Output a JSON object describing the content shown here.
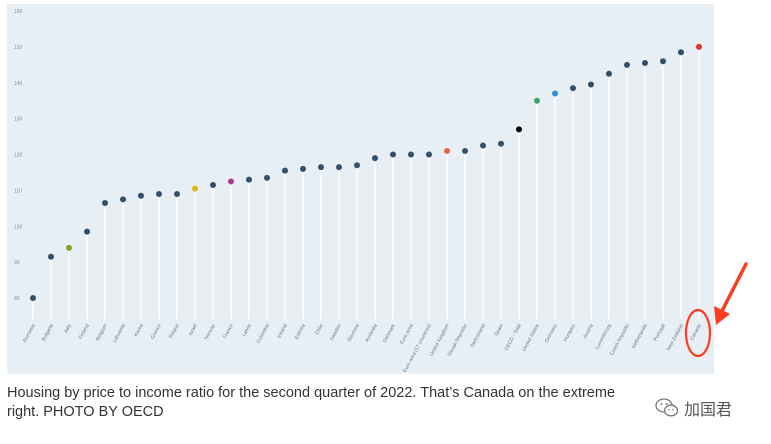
{
  "chart_data": {
    "type": "scatter",
    "title": "",
    "xlabel": "",
    "ylabel": "",
    "ylim": [
      75,
      160
    ],
    "yticks": [
      "160",
      "150",
      "140",
      "130",
      "120",
      "110",
      "100",
      "90",
      "80"
    ],
    "ytick_values": [
      160,
      150,
      140,
      130,
      120,
      110,
      100,
      90,
      80
    ],
    "categories": [
      "Romania",
      "Bulgaria",
      "Italy",
      "Finland",
      "Belgium",
      "Lithuania",
      "Korea",
      "Greece",
      "Poland",
      "Israel",
      "Norway",
      "France",
      "Latvia",
      "Colombia",
      "Ireland",
      "Estonia",
      "Chile",
      "Sweden",
      "Slovenia",
      "Australia",
      "Denmark",
      "Euro area",
      "Euro area (17 countries)",
      "United Kingdom",
      "Slovak Republic",
      "Switzerland",
      "Spain",
      "OECD - Total",
      "United States",
      "Germany",
      "Hungary",
      "Austria",
      "Luxembourg",
      "Czech Republic",
      "Netherlands",
      "Portugal",
      "New Zealand",
      "Canada"
    ],
    "values": [
      80,
      91.5,
      94,
      98.5,
      106.5,
      107.5,
      108.5,
      109,
      109,
      110.5,
      111.5,
      112.5,
      113,
      113.5,
      115.5,
      116,
      116.5,
      116.5,
      117,
      119,
      120,
      120,
      120,
      121,
      121,
      122.5,
      123,
      127,
      135,
      137,
      138.5,
      139.5,
      142.5,
      145,
      145.5,
      146,
      148.5,
      150
    ],
    "default_color": "#33506b",
    "highlight_colors": {
      "Italy": "#7fa32e",
      "Israel": "#e0b318",
      "France": "#a83b8c",
      "United Kingdom": "#e8623a",
      "OECD - Total": "#000000",
      "United States": "#3aa86a",
      "Germany": "#2b8fd6",
      "Canada": "#e2342c"
    },
    "label_colors": {
      "Italy": "#a7c35a",
      "Israel": "#e8c85a",
      "France": "#d46aae",
      "United Kingdom": "#f08d6c",
      "United States": "#6cc08e",
      "Germany": "#66b0e4",
      "Canada": "#ee7b70"
    },
    "grid": false
  },
  "caption": {
    "line1": "Housing by price to income ratio for the second quarter of 2022. That’s Canada on the extreme",
    "line2": "right. PHOTO BY OECD"
  },
  "watermark": {
    "icon": "wechat-icon",
    "text": "加国君"
  },
  "annotation": {
    "arrow_color": "#ff3b1f"
  }
}
